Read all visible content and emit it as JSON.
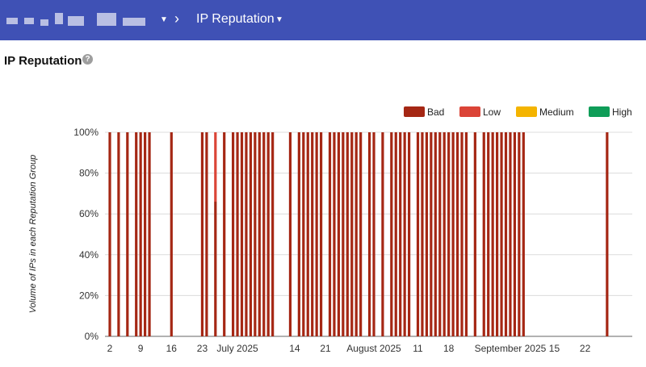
{
  "header": {
    "account_label": "",
    "breadcrumb": "IP Reputation"
  },
  "page": {
    "title": "IP Reputation",
    "help_icon": "help-icon"
  },
  "colors": {
    "header_bg": "#3f51b5",
    "bad": "#a52714",
    "low": "#db4437",
    "medium": "#f4b400",
    "high": "#0f9d58"
  },
  "chart_data": {
    "type": "bar",
    "stacked": true,
    "ylabel": "Volume of IPs in each Reputation Group",
    "ylim": [
      0,
      100
    ],
    "yticks": [
      "0%",
      "20%",
      "40%",
      "60%",
      "80%",
      "100%"
    ],
    "grid": true,
    "legend_position": "top-right",
    "legend": [
      "Bad",
      "Low",
      "Medium",
      "High"
    ],
    "x_tick_labels": [
      {
        "day": 1,
        "label": "2"
      },
      {
        "day": 8,
        "label": "9"
      },
      {
        "day": 15,
        "label": "16"
      },
      {
        "day": 22,
        "label": "23"
      },
      {
        "day": 30,
        "label": "July 2025"
      },
      {
        "day": 43,
        "label": "14"
      },
      {
        "day": 50,
        "label": "21"
      },
      {
        "day": 61,
        "label": "August 2025"
      },
      {
        "day": 71,
        "label": "11"
      },
      {
        "day": 78,
        "label": "18"
      },
      {
        "day": 92,
        "label": "September 2025"
      },
      {
        "day": 102,
        "label": "15"
      },
      {
        "day": 109,
        "label": "22"
      }
    ],
    "series": [
      {
        "name": "Bad",
        "values": [
          100,
          0,
          100,
          0,
          100,
          0,
          100,
          100,
          100,
          100,
          0,
          0,
          0,
          0,
          100,
          0,
          0,
          0,
          0,
          0,
          0,
          100,
          100,
          0,
          66,
          0,
          100,
          0,
          100,
          100,
          100,
          100,
          100,
          100,
          100,
          100,
          100,
          100,
          0,
          0,
          0,
          100,
          0,
          100,
          100,
          100,
          100,
          100,
          100,
          0,
          100,
          100,
          100,
          100,
          100,
          100,
          100,
          100,
          0,
          100,
          100,
          0,
          100,
          0,
          100,
          100,
          100,
          100,
          100,
          0,
          100,
          100,
          100,
          100,
          100,
          100,
          100,
          100,
          100,
          100,
          100,
          100,
          0,
          100,
          0,
          100,
          100,
          100,
          100,
          100,
          100,
          100,
          100,
          100,
          100,
          0,
          0,
          0,
          0,
          0,
          0,
          0,
          0,
          0,
          0,
          0,
          0,
          0,
          0,
          0,
          0,
          0,
          0,
          100
        ]
      },
      {
        "name": "Low",
        "values": [
          0,
          0,
          0,
          0,
          0,
          0,
          0,
          0,
          0,
          0,
          0,
          0,
          0,
          0,
          0,
          0,
          0,
          0,
          0,
          0,
          0,
          0,
          0,
          0,
          34,
          0,
          0,
          0,
          0,
          0,
          0,
          0,
          0,
          0,
          0,
          0,
          0,
          0,
          0,
          0,
          0,
          0,
          0,
          0,
          0,
          0,
          0,
          0,
          0,
          0,
          0,
          0,
          0,
          0,
          0,
          0,
          0,
          0,
          0,
          0,
          0,
          0,
          0,
          0,
          0,
          0,
          0,
          0,
          0,
          0,
          0,
          0,
          0,
          0,
          0,
          0,
          0,
          0,
          0,
          0,
          0,
          0,
          0,
          0,
          0,
          0,
          0,
          0,
          0,
          0,
          0,
          0,
          0,
          0,
          0,
          0,
          0,
          0,
          0,
          0,
          0,
          0,
          0,
          0,
          0,
          0,
          0,
          0,
          0,
          0,
          0,
          0,
          0,
          0
        ]
      },
      {
        "name": "Medium",
        "values": []
      },
      {
        "name": "High",
        "values": []
      }
    ]
  }
}
